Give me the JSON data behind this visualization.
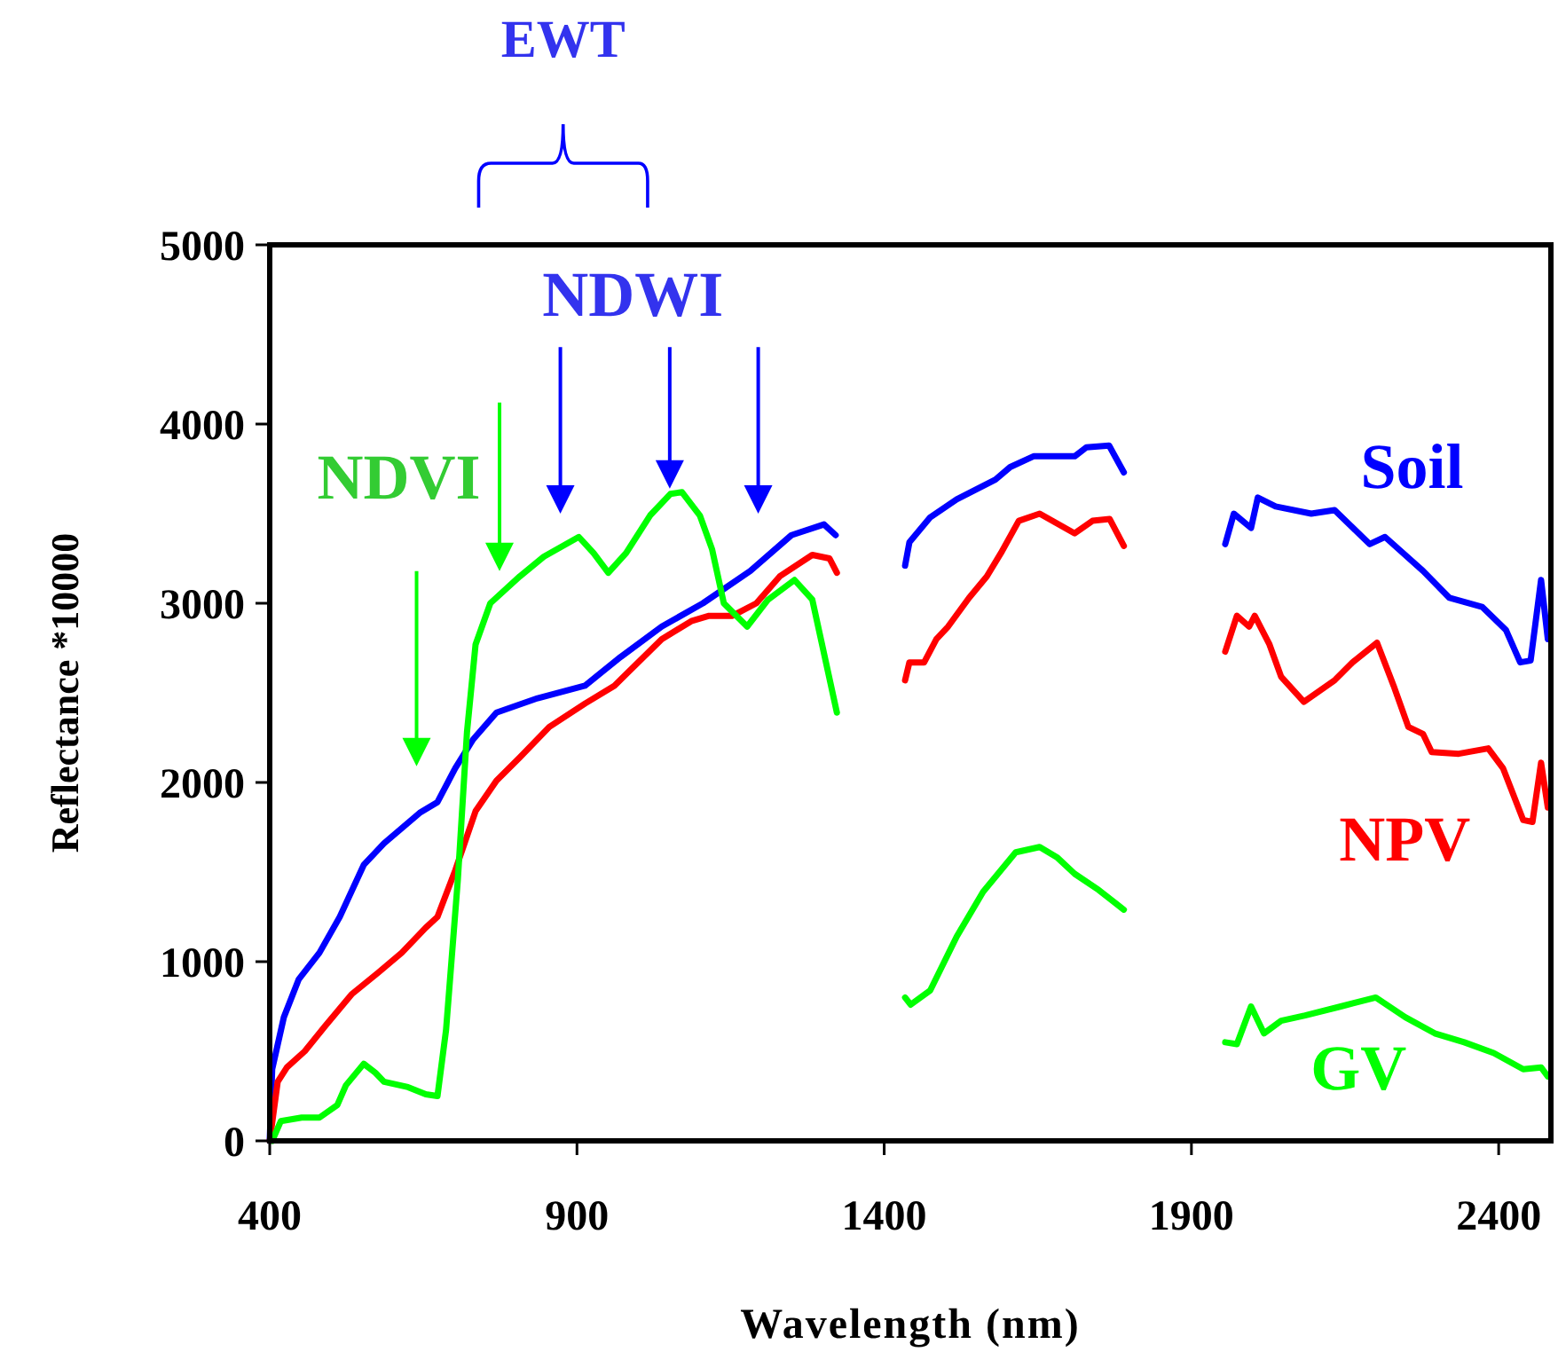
{
  "chart_data": {
    "type": "line",
    "xlabel": "Wavelength (nm)",
    "ylabel": "Reflectance *10000",
    "xlim": [
      400,
      2485
    ],
    "xticks": [
      400,
      900,
      1400,
      1900,
      2400
    ],
    "ylim": [
      0,
      5000
    ],
    "yticks": [
      0,
      1000,
      2000,
      3000,
      4000,
      5000
    ],
    "grid": false,
    "marker": "none",
    "line_style": "solid",
    "annotations": [
      "EWT",
      "NDVI",
      "NDWI"
    ],
    "series": [
      {
        "name": "Soil",
        "color": "#0000ff",
        "x": [
          400,
          404,
          423,
          447,
          481,
          514,
          553,
          586,
          644,
          673,
          702,
          731,
          769,
          836,
          913,
          971,
          1038,
          1105,
          1182,
          1249,
          1302,
          1321,
          1380,
          1434,
          1441,
          1475,
          1518,
          1581,
          1605,
          1643,
          1710,
          1729,
          1766,
          1790,
          1870,
          1955,
          1969,
          1997,
          2008,
          2037,
          2095,
          2133,
          2190,
          2215,
          2277,
          2320,
          2373,
          2412,
          2435,
          2452,
          2469,
          2480
        ],
        "values": [
          0,
          400,
          690,
          900,
          1050,
          1250,
          1540,
          1660,
          1830,
          1890,
          2080,
          2240,
          2390,
          2470,
          2540,
          2700,
          2870,
          3000,
          3180,
          3380,
          3440,
          3380,
          null,
          3210,
          3340,
          3480,
          3580,
          3690,
          3760,
          3820,
          3820,
          3870,
          3880,
          3730,
          null,
          3330,
          3500,
          3420,
          3590,
          3540,
          3500,
          3520,
          3330,
          3370,
          3180,
          3030,
          2980,
          2850,
          2670,
          2680,
          3130,
          2800
        ]
      },
      {
        "name": "NPV",
        "color": "#ff0000",
        "x": [
          400,
          413,
          428,
          457,
          490,
          534,
          577,
          615,
          654,
          673,
          702,
          735,
          769,
          807,
          855,
          913,
          961,
          1038,
          1086,
          1115,
          1153,
          1192,
          1230,
          1283,
          1311,
          1323,
          1380,
          1434,
          1441,
          1465,
          1485,
          1504,
          1538,
          1567,
          1590,
          1619,
          1653,
          1710,
          1739,
          1767,
          1790,
          1870,
          1955,
          1974,
          1994,
          2003,
          2027,
          2046,
          2083,
          2133,
          2162,
          2202,
          2229,
          2253,
          2277,
          2291,
          2335,
          2383,
          2407,
          2440,
          2455,
          2469,
          2480
        ],
        "values": [
          0,
          330,
          410,
          500,
          640,
          820,
          940,
          1050,
          1190,
          1250,
          1510,
          1840,
          2010,
          2140,
          2310,
          2440,
          2540,
          2800,
          2900,
          2930,
          2930,
          3000,
          3150,
          3270,
          3250,
          3170,
          null,
          2570,
          2670,
          2670,
          2800,
          2870,
          3030,
          3150,
          3280,
          3460,
          3500,
          3390,
          3460,
          3470,
          3320,
          null,
          2730,
          2930,
          2870,
          2930,
          2770,
          2590,
          2450,
          2570,
          2670,
          2780,
          2540,
          2310,
          2270,
          2170,
          2160,
          2190,
          2080,
          1790,
          1780,
          2110,
          1860
        ]
      },
      {
        "name": "GV",
        "color": "#00ff00",
        "x": [
          404,
          418,
          452,
          481,
          510,
          524,
          553,
          572,
          586,
          625,
          654,
          673,
          687,
          706,
          721,
          735,
          759,
          807,
          846,
          903,
          927,
          951,
          980,
          1019,
          1052,
          1071,
          1100,
          1120,
          1139,
          1177,
          1211,
          1254,
          1283,
          1323,
          1380,
          1434,
          1443,
          1475,
          1518,
          1561,
          1614,
          1653,
          1682,
          1710,
          1749,
          1790,
          1870,
          1955,
          1974,
          1997,
          2018,
          2046,
          2085,
          2143,
          2200,
          2248,
          2296,
          2344,
          2392,
          2440,
          2469,
          2480
        ],
        "values": [
          0,
          110,
          130,
          130,
          200,
          310,
          430,
          380,
          330,
          300,
          260,
          250,
          620,
          1450,
          2280,
          2770,
          3000,
          3150,
          3260,
          3370,
          3280,
          3170,
          3280,
          3490,
          3610,
          3620,
          3490,
          3300,
          3000,
          2870,
          3020,
          3130,
          3020,
          2390,
          null,
          800,
          760,
          840,
          1140,
          1390,
          1610,
          1640,
          1580,
          1490,
          1400,
          1290,
          null,
          550,
          540,
          750,
          600,
          670,
          700,
          750,
          800,
          690,
          600,
          550,
          490,
          400,
          410,
          360
        ]
      }
    ]
  }
}
